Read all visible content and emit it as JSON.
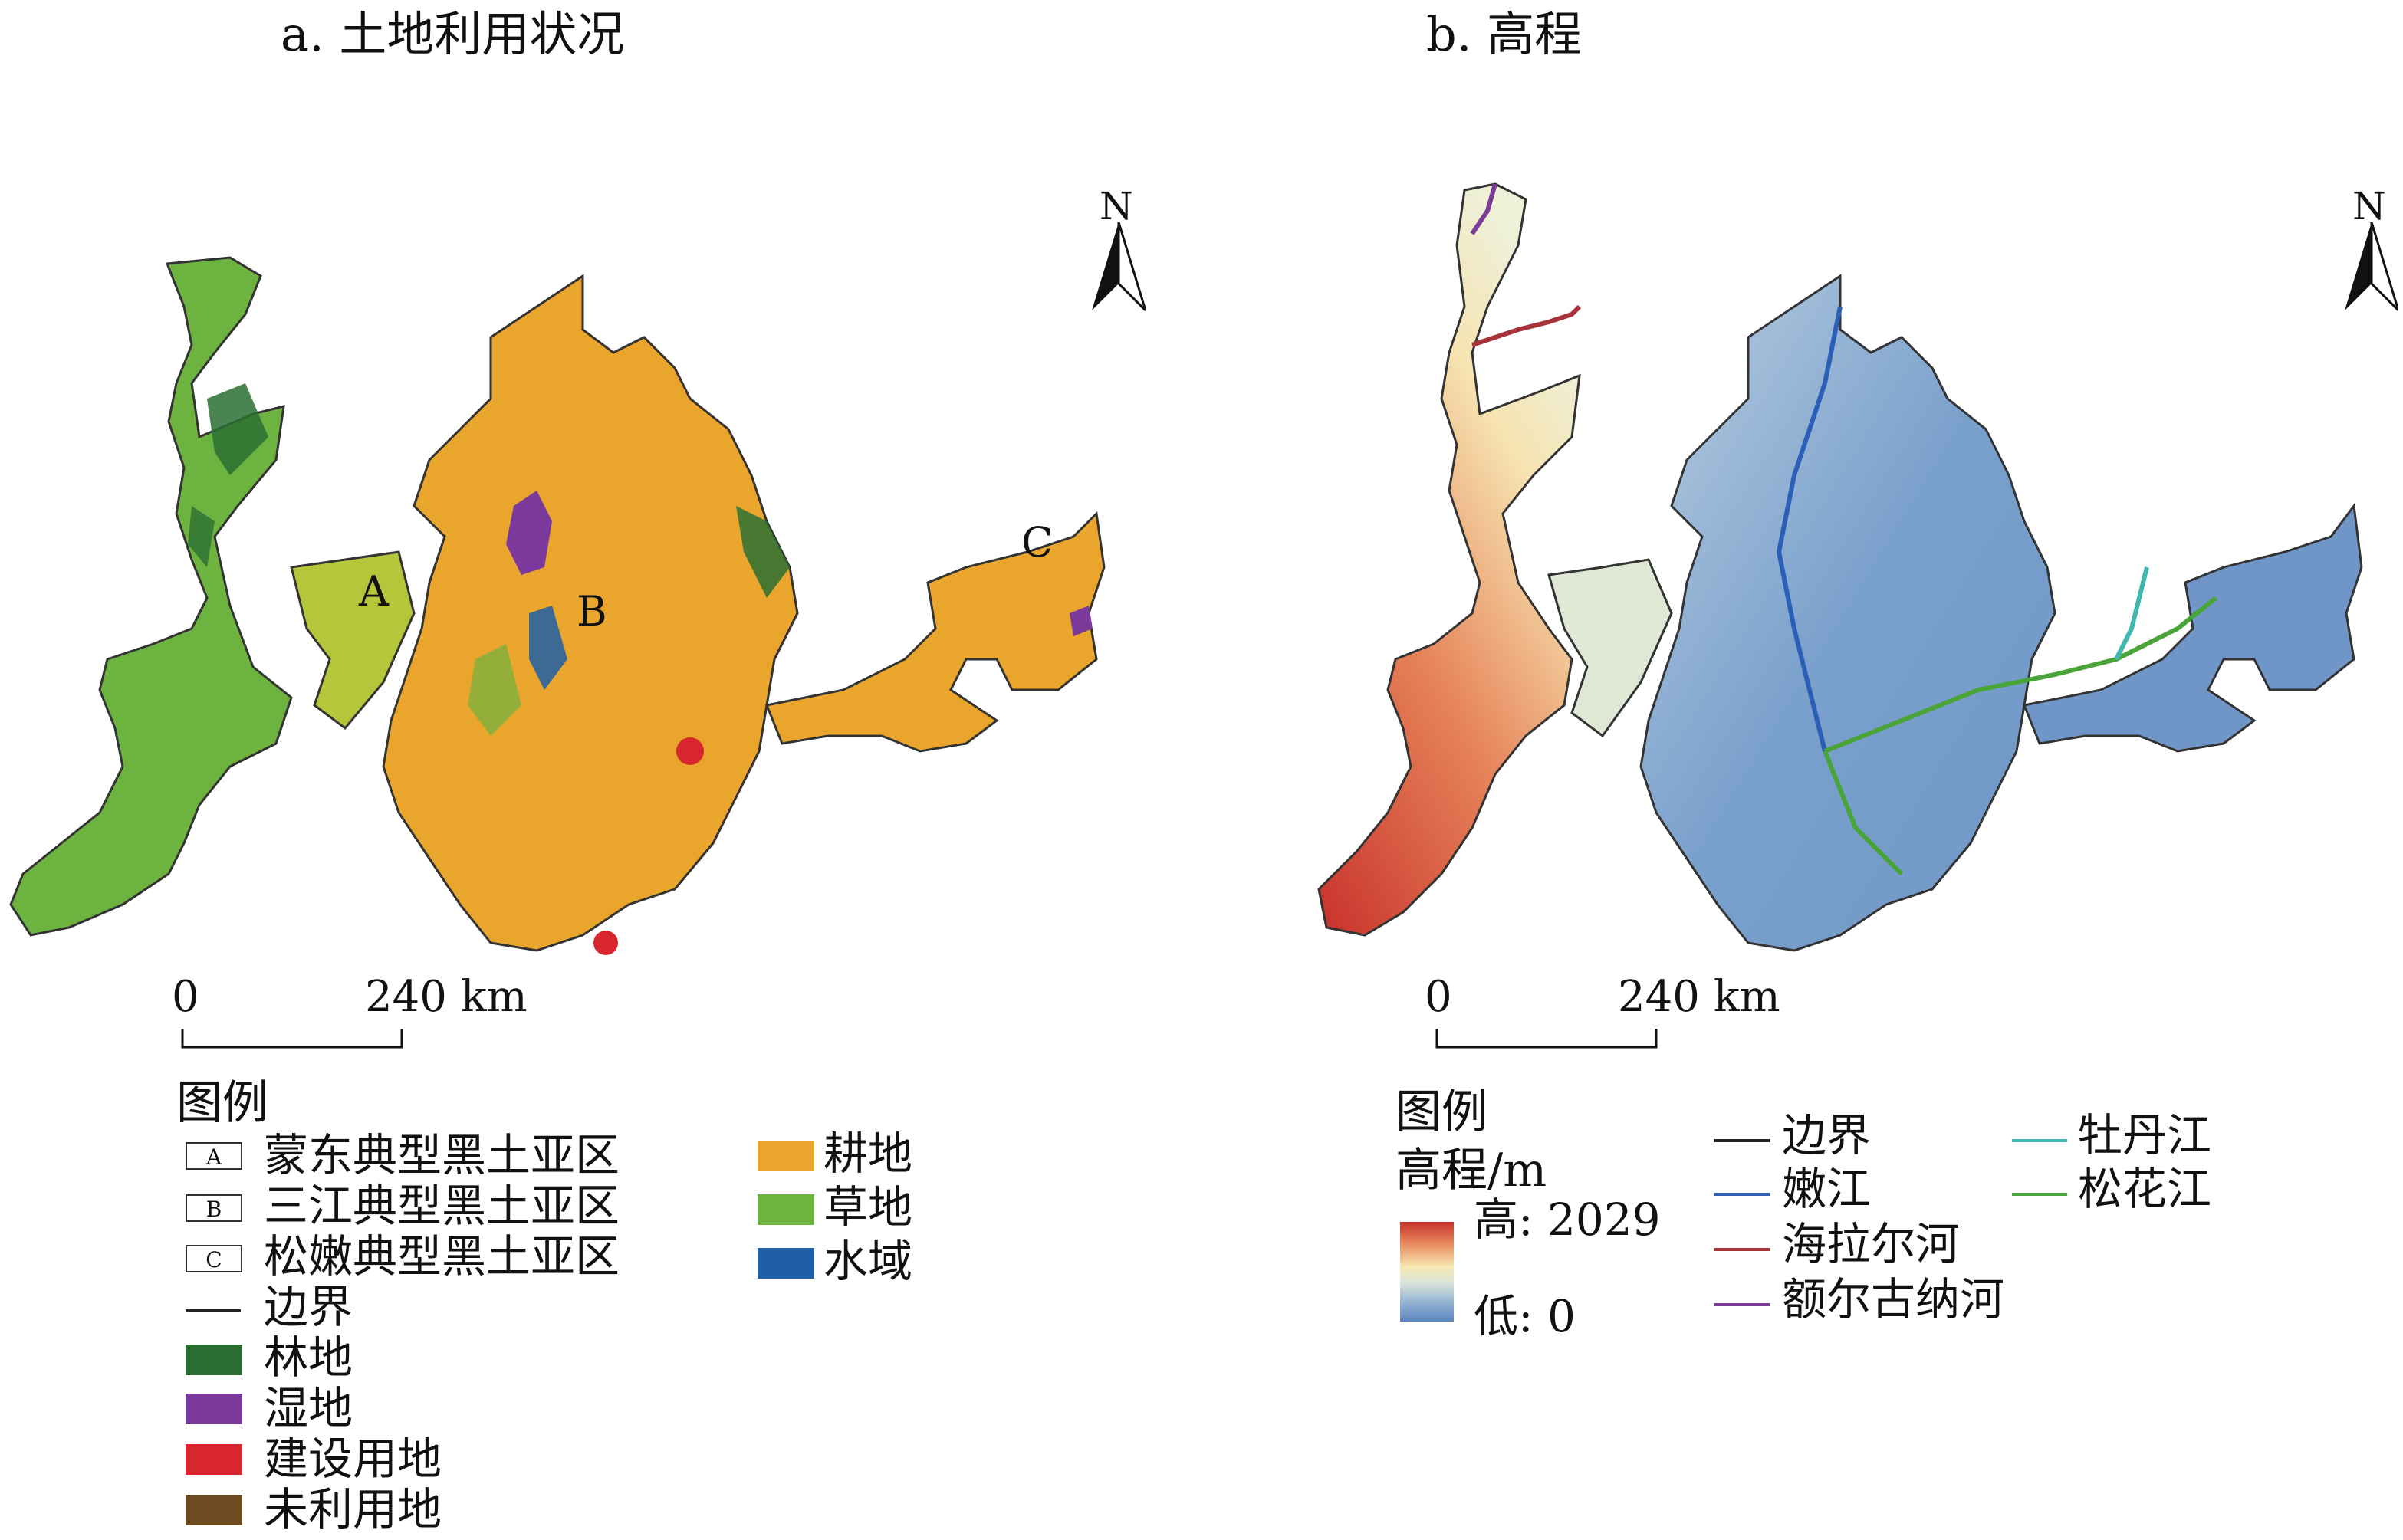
{
  "panel_a": {
    "title": "a. 土地利用状况",
    "north": "N",
    "zone_labels": [
      "A",
      "B",
      "C"
    ],
    "scale": {
      "start": "0",
      "end": "240 km"
    },
    "legend": {
      "title": "图例",
      "zones": [
        {
          "box": "A",
          "label": "蒙东典型黑土亚区"
        },
        {
          "box": "B",
          "label": "三江典型黑土亚区"
        },
        {
          "box": "C",
          "label": "松嫩典型黑土亚区"
        }
      ],
      "boundary": "边界",
      "classes_left": [
        {
          "label": "林地",
          "color": "#2a6e33"
        },
        {
          "label": "湿地",
          "color": "#7b3a9b"
        },
        {
          "label": "建设用地",
          "color": "#d7262e"
        },
        {
          "label": "未利用地",
          "color": "#6b4b1f"
        }
      ],
      "classes_right": [
        {
          "label": "耕地",
          "color": "#eaa52c"
        },
        {
          "label": "草地",
          "color": "#6db33f"
        },
        {
          "label": "水域",
          "color": "#1f5fa8"
        }
      ]
    }
  },
  "panel_b": {
    "title": "b. 高程",
    "north": "N",
    "scale": {
      "start": "0",
      "end": "240 km"
    },
    "legend": {
      "title": "图例",
      "subtitle": "高程/m",
      "high": "高: 2029",
      "low": "低: 0",
      "rivers_left": [
        {
          "label": "边界",
          "color": "#222222"
        },
        {
          "label": "嫩江",
          "color": "#2b5fb7"
        },
        {
          "label": "海拉尔河",
          "color": "#a8323a"
        },
        {
          "label": "额尔古纳河",
          "color": "#7a3c96"
        }
      ],
      "rivers_right": [
        {
          "label": "牡丹江",
          "color": "#3fb8b0"
        },
        {
          "label": "松花江",
          "color": "#49a43a"
        }
      ]
    }
  }
}
